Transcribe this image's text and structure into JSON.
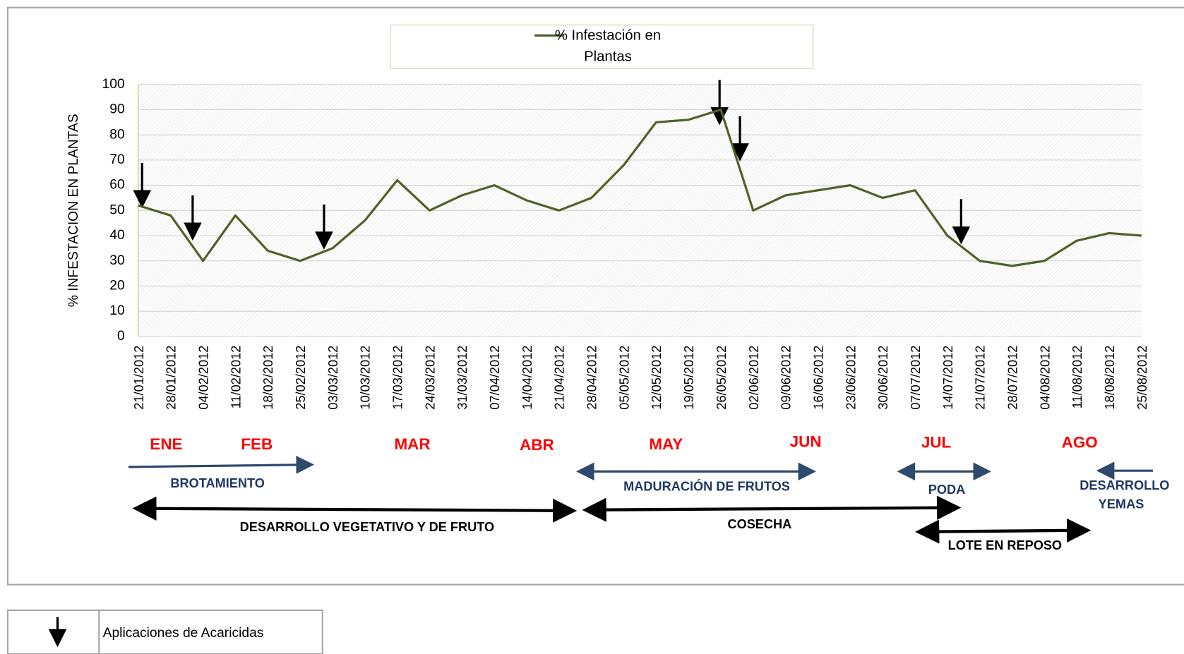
{
  "chart_data": {
    "type": "line",
    "y_label": "% INFESTACION EN PLANTAS",
    "categories": [
      "21/01/2012",
      "28/01/2012",
      "04/02/2012",
      "11/02/2012",
      "18/02/2012",
      "25/02/2012",
      "03/03/2012",
      "10/03/2012",
      "17/03/2012",
      "24/03/2012",
      "31/03/2012",
      "07/04/2012",
      "14/04/2012",
      "21/04/2012",
      "28/04/2012",
      "05/05/2012",
      "12/05/2012",
      "19/05/2012",
      "26/05/2012",
      "02/06/2012",
      "09/06/2012",
      "16/06/2012",
      "23/06/2012",
      "30/06/2012",
      "07/07/2012",
      "14/07/2012",
      "21/07/2012",
      "28/07/2012",
      "04/08/2012",
      "11/08/2012",
      "18/08/2012",
      "25/08/2012"
    ],
    "series": [
      {
        "name": "% Infestación en Plantas",
        "color": "#4f6228",
        "values": [
          52,
          48,
          30,
          48,
          34,
          30,
          35,
          46,
          62,
          50,
          56,
          60,
          54,
          50,
          55,
          68,
          85,
          86,
          90,
          50,
          56,
          58,
          60,
          55,
          58,
          40,
          30,
          28,
          30,
          38,
          41,
          40
        ]
      }
    ],
    "ylim": [
      0,
      100
    ],
    "yticks": [
      0,
      10,
      20,
      30,
      40,
      50,
      60,
      70,
      80,
      90,
      100
    ],
    "grid": true,
    "months": [
      "ENE",
      "FEB",
      "MAR",
      "ABR",
      "MAY",
      "JUN",
      "JUL",
      "AGO"
    ],
    "phases": [
      "BROTAMIENTO",
      "MADURACIÓN DE FRUTOS",
      "PODA",
      "DESARROLLO YEMAS",
      "DESARROLLO VEGETATIVO Y DE FRUTO",
      "COSECHA",
      "LOTE EN REPOSO"
    ],
    "key": "Aplicaciones de Acaricidas"
  }
}
